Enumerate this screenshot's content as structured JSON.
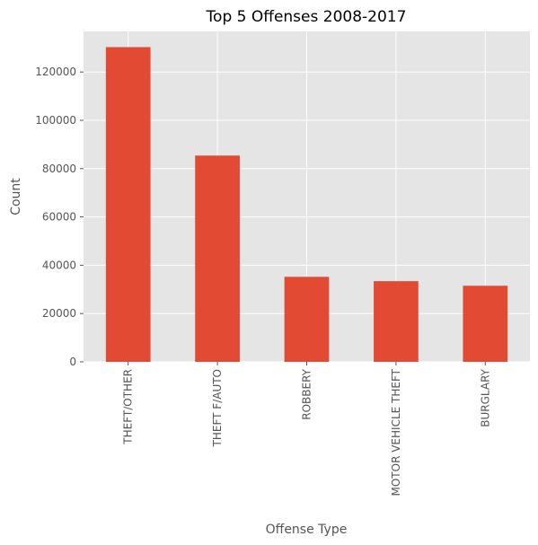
{
  "chart_data": {
    "type": "bar",
    "title": "Top 5 Offenses 2008-2017",
    "xlabel": "Offense Type",
    "ylabel": "Count",
    "categories": [
      "THEFT/OTHER",
      "THEFT F/AUTO",
      "ROBBERY",
      "MOTOR VEHICLE THEFT",
      "BURGLARY"
    ],
    "values": [
      130300,
      85400,
      35200,
      33400,
      31500
    ],
    "ylim": [
      0,
      136800
    ],
    "yticks": [
      0,
      20000,
      40000,
      60000,
      80000,
      100000,
      120000
    ],
    "grid": true,
    "legend": "none",
    "colors": {
      "bar": "#E24A33",
      "plot_background": "#E5E5E5",
      "grid": "#FFFFFF",
      "tick_text": "#555555",
      "title_text": "#000000"
    }
  }
}
